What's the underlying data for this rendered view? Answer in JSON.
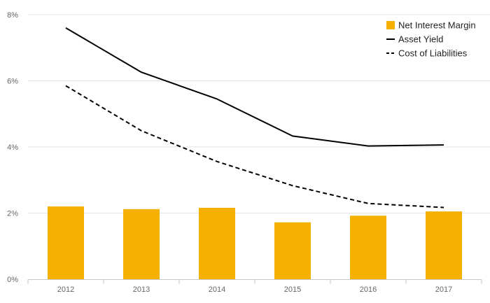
{
  "chart_data": {
    "type": "bar",
    "categories": [
      "2012",
      "2013",
      "2014",
      "2015",
      "2016",
      "2017"
    ],
    "series": [
      {
        "name": "Net Interest Margin",
        "type": "bar",
        "color": "#f6b000",
        "values": [
          2.2,
          2.12,
          2.16,
          1.72,
          1.92,
          2.05
        ]
      },
      {
        "name": "Asset Yield",
        "type": "line",
        "style": "solid",
        "color": "#000000",
        "values": [
          7.6,
          6.26,
          5.45,
          4.33,
          4.03,
          4.06
        ]
      },
      {
        "name": "Cost of Liabilities",
        "type": "line",
        "style": "dashed",
        "color": "#000000",
        "values": [
          5.85,
          4.49,
          3.56,
          2.83,
          2.29,
          2.17
        ]
      }
    ],
    "y_ticks": [
      0,
      2,
      4,
      6,
      8
    ],
    "y_tick_labels": [
      "0%",
      "2%",
      "4%",
      "6%",
      "8%"
    ],
    "ylim": [
      0,
      8
    ],
    "grid": true,
    "legend_position": "top-right"
  }
}
